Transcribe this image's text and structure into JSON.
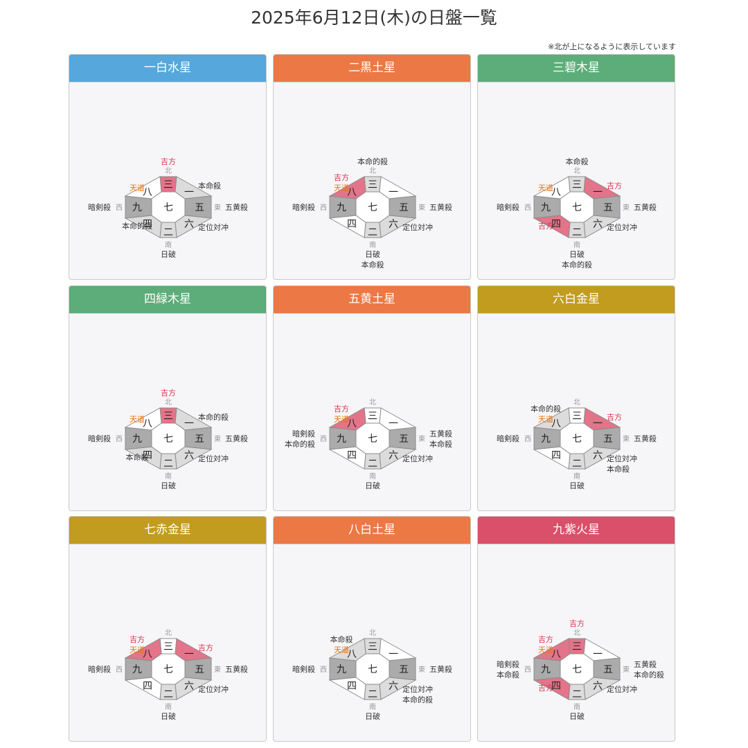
{
  "page": {
    "title": "2025年6月12日(木)の日盤一覧",
    "note": "※北が上になるように表示しています"
  },
  "directions": {
    "north": "北",
    "south": "南",
    "east": "東",
    "west": "西"
  },
  "colors": {
    "white_star": "#55a7dc",
    "earth_star": "#ec7846",
    "wood_star": "#5cad79",
    "metal_star": "#c19c1f",
    "fire_star": "#da4f69",
    "lucky": "#e37489",
    "evil_light": "#dcdcdc",
    "evil_dark": "#ababab",
    "lucky_text": "#d8344e",
    "tendo_text": "#e8740f"
  },
  "boards": [
    {
      "name": "一白水星",
      "color": "#55a7dc",
      "center": "七",
      "N": "三",
      "NE": "一",
      "E": "五",
      "SE": "六",
      "S": "二",
      "SW": "四",
      "W": "九",
      "NW": "八",
      "fill": {
        "N": "lucky",
        "NE": "light",
        "E": "dark",
        "SE": "light",
        "S": "light",
        "SW": "light",
        "W": "dark",
        "NW": "white"
      },
      "labels": {
        "N": [
          [
            "吉方",
            "r"
          ]
        ],
        "NW": [
          [
            "天道",
            "o"
          ]
        ],
        "NE": [
          [
            "本命殺",
            "k"
          ]
        ],
        "W": [
          [
            "暗剣殺",
            "k"
          ]
        ],
        "E": [
          [
            "五黄殺",
            "k"
          ]
        ],
        "SW": [
          [
            "本命的殺",
            "k"
          ]
        ],
        "SE": [
          [
            "定位対冲",
            "k"
          ]
        ],
        "S": [
          [
            "日破",
            "k"
          ]
        ]
      }
    },
    {
      "name": "二黒土星",
      "color": "#ec7846",
      "center": "七",
      "N": "三",
      "NE": "一",
      "E": "五",
      "SE": "六",
      "S": "二",
      "SW": "四",
      "W": "九",
      "NW": "八",
      "fill": {
        "N": "light",
        "NE": "white",
        "E": "dark",
        "SE": "light",
        "S": "light",
        "SW": "white",
        "W": "dark",
        "NW": "lucky"
      },
      "labels": {
        "N": [
          [
            "本命的殺",
            "k"
          ]
        ],
        "NW": [
          [
            "吉方",
            "r"
          ],
          [
            "天道",
            "o"
          ]
        ],
        "W": [
          [
            "暗剣殺",
            "k"
          ]
        ],
        "E": [
          [
            "五黄殺",
            "k"
          ]
        ],
        "SE": [
          [
            "定位対冲",
            "k"
          ]
        ],
        "S": [
          [
            "日破",
            "k"
          ],
          [
            "本命殺",
            "k"
          ]
        ]
      }
    },
    {
      "name": "三碧木星",
      "color": "#5cad79",
      "center": "七",
      "N": "三",
      "NE": "一",
      "E": "五",
      "SE": "六",
      "S": "二",
      "SW": "四",
      "W": "九",
      "NW": "八",
      "fill": {
        "N": "light",
        "NE": "lucky",
        "E": "dark",
        "SE": "light",
        "S": "light",
        "SW": "lucky",
        "W": "dark",
        "NW": "white"
      },
      "labels": {
        "N": [
          [
            "本命殺",
            "k"
          ]
        ],
        "NW": [
          [
            "天道",
            "o"
          ]
        ],
        "NE": [
          [
            "吉方",
            "r"
          ]
        ],
        "W": [
          [
            "暗剣殺",
            "k"
          ]
        ],
        "E": [
          [
            "五黄殺",
            "k"
          ]
        ],
        "SW": [
          [
            "吉方",
            "r"
          ]
        ],
        "SE": [
          [
            "定位対冲",
            "k"
          ]
        ],
        "S": [
          [
            "日破",
            "k"
          ],
          [
            "本命的殺",
            "k"
          ]
        ]
      }
    },
    {
      "name": "四緑木星",
      "color": "#5cad79",
      "center": "七",
      "N": "三",
      "NE": "一",
      "E": "五",
      "SE": "六",
      "S": "二",
      "SW": "四",
      "W": "九",
      "NW": "八",
      "fill": {
        "N": "lucky",
        "NE": "light",
        "E": "dark",
        "SE": "light",
        "S": "light",
        "SW": "light",
        "W": "dark",
        "NW": "white"
      },
      "labels": {
        "N": [
          [
            "吉方",
            "r"
          ]
        ],
        "NW": [
          [
            "天道",
            "o"
          ]
        ],
        "NE": [
          [
            "本命的殺",
            "k"
          ]
        ],
        "W": [
          [
            "暗剣殺",
            "k"
          ]
        ],
        "E": [
          [
            "五黄殺",
            "k"
          ]
        ],
        "SW": [
          [
            "本命殺",
            "k"
          ]
        ],
        "SE": [
          [
            "定位対冲",
            "k"
          ]
        ],
        "S": [
          [
            "日破",
            "k"
          ]
        ]
      }
    },
    {
      "name": "五黄土星",
      "color": "#ec7846",
      "center": "七",
      "N": "三",
      "NE": "一",
      "E": "五",
      "SE": "六",
      "S": "二",
      "SW": "四",
      "W": "九",
      "NW": "八",
      "fill": {
        "N": "white",
        "NE": "white",
        "E": "dark",
        "SE": "light",
        "S": "light",
        "SW": "white",
        "W": "dark",
        "NW": "lucky"
      },
      "labels": {
        "NW": [
          [
            "吉方",
            "r"
          ],
          [
            "天道",
            "o"
          ]
        ],
        "W": [
          [
            "暗剣殺",
            "k"
          ],
          [
            "本命的殺",
            "k"
          ]
        ],
        "E": [
          [
            "五黄殺",
            "k"
          ],
          [
            "本命殺",
            "k"
          ]
        ],
        "SE": [
          [
            "定位対冲",
            "k"
          ]
        ],
        "S": [
          [
            "日破",
            "k"
          ]
        ]
      }
    },
    {
      "name": "六白金星",
      "color": "#c19c1f",
      "center": "七",
      "N": "三",
      "NE": "一",
      "E": "五",
      "SE": "六",
      "S": "二",
      "SW": "四",
      "W": "九",
      "NW": "八",
      "fill": {
        "N": "white",
        "NE": "lucky",
        "E": "dark",
        "SE": "light",
        "S": "light",
        "SW": "white",
        "W": "dark",
        "NW": "light"
      },
      "labels": {
        "NW": [
          [
            "本命的殺",
            "k"
          ],
          [
            "天道",
            "o"
          ]
        ],
        "NE": [
          [
            "吉方",
            "r"
          ]
        ],
        "W": [
          [
            "暗剣殺",
            "k"
          ]
        ],
        "E": [
          [
            "五黄殺",
            "k"
          ]
        ],
        "SE": [
          [
            "定位対冲",
            "k"
          ],
          [
            "本命殺",
            "k"
          ]
        ],
        "S": [
          [
            "日破",
            "k"
          ]
        ]
      }
    },
    {
      "name": "七赤金星",
      "color": "#c19c1f",
      "center": "七",
      "N": "三",
      "NE": "一",
      "E": "五",
      "SE": "六",
      "S": "二",
      "SW": "四",
      "W": "九",
      "NW": "八",
      "fill": {
        "N": "white",
        "NE": "lucky",
        "E": "dark",
        "SE": "light",
        "S": "light",
        "SW": "white",
        "W": "dark",
        "NW": "lucky"
      },
      "labels": {
        "NW": [
          [
            "吉方",
            "r"
          ],
          [
            "天道",
            "o"
          ]
        ],
        "NE": [
          [
            "吉方",
            "r"
          ]
        ],
        "W": [
          [
            "暗剣殺",
            "k"
          ]
        ],
        "E": [
          [
            "五黄殺",
            "k"
          ]
        ],
        "SE": [
          [
            "定位対冲",
            "k"
          ]
        ],
        "S": [
          [
            "日破",
            "k"
          ]
        ]
      }
    },
    {
      "name": "八白土星",
      "color": "#ec7846",
      "center": "七",
      "N": "三",
      "NE": "一",
      "E": "五",
      "SE": "六",
      "S": "二",
      "SW": "四",
      "W": "九",
      "NW": "八",
      "fill": {
        "N": "light",
        "NE": "white",
        "E": "dark",
        "SE": "light",
        "S": "light",
        "SW": "white",
        "W": "dark",
        "NW": "light"
      },
      "labels": {
        "NW": [
          [
            "本命殺",
            "k"
          ],
          [
            "天道",
            "o"
          ]
        ],
        "W": [
          [
            "暗剣殺",
            "k"
          ]
        ],
        "E": [
          [
            "五黄殺",
            "k"
          ]
        ],
        "SE": [
          [
            "定位対冲",
            "k"
          ],
          [
            "本命的殺",
            "k"
          ]
        ],
        "S": [
          [
            "日破",
            "k"
          ]
        ]
      }
    },
    {
      "name": "九紫火星",
      "color": "#da4f69",
      "center": "七",
      "N": "三",
      "NE": "一",
      "E": "五",
      "SE": "六",
      "S": "二",
      "SW": "四",
      "W": "九",
      "NW": "八",
      "fill": {
        "N": "lucky",
        "NE": "white",
        "E": "dark",
        "SE": "light",
        "S": "light",
        "SW": "lucky",
        "W": "dark",
        "NW": "lucky"
      },
      "labels": {
        "N": [
          [
            "吉方",
            "r"
          ]
        ],
        "NW": [
          [
            "吉方",
            "r"
          ],
          [
            "天道",
            "o"
          ]
        ],
        "W": [
          [
            "暗剣殺",
            "k"
          ],
          [
            "本命殺",
            "k"
          ]
        ],
        "E": [
          [
            "五黄殺",
            "k"
          ],
          [
            "本命的殺",
            "k"
          ]
        ],
        "SW": [
          [
            "吉方",
            "r"
          ]
        ],
        "SE": [
          [
            "定位対冲",
            "k"
          ]
        ],
        "S": [
          [
            "日破",
            "k"
          ]
        ]
      }
    }
  ]
}
